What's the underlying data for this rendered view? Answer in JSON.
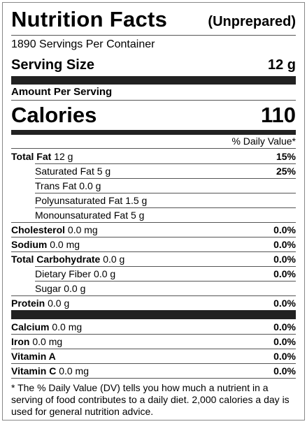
{
  "header": {
    "title": "Nutrition Facts",
    "subtitle": "(Unprepared)"
  },
  "servings_per_container": "1890 Servings Per Container",
  "serving_size": {
    "label": "Serving Size",
    "value": "12 g"
  },
  "amount_per_serving": "Amount Per Serving",
  "calories": {
    "label": "Calories",
    "value": "110"
  },
  "daily_value_header": "% Daily Value*",
  "nutrients": [
    {
      "name": "Total Fat",
      "amount": "12 g",
      "dv": "15%",
      "sub": [
        {
          "name": "Saturated Fat",
          "amount": "5 g",
          "dv": "25%"
        },
        {
          "name": "Trans Fat",
          "amount": "0.0 g"
        },
        {
          "name": "Polyunsaturated Fat",
          "amount": "1.5 g"
        },
        {
          "name": "Monounsaturated Fat",
          "amount": "5 g"
        }
      ]
    },
    {
      "name": "Cholesterol",
      "amount": "0.0 mg",
      "dv": "0.0%"
    },
    {
      "name": "Sodium",
      "amount": "0.0 mg",
      "dv": "0.0%"
    },
    {
      "name": "Total Carbohydrate",
      "amount": "0.0 g",
      "dv": "0.0%",
      "sub": [
        {
          "name": "Dietary Fiber",
          "amount": "0.0 g",
          "dv": "0.0%"
        },
        {
          "name": "Sugar",
          "amount": "0.0 g"
        }
      ]
    },
    {
      "name": "Protein",
      "amount": "0.0 g",
      "dv": "0.0%"
    }
  ],
  "vitamins_minerals": [
    {
      "name": "Calcium",
      "amount": "0.0 mg",
      "dv": "0.0%"
    },
    {
      "name": "Iron",
      "amount": "0.0 mg",
      "dv": "0.0%"
    },
    {
      "name": "Vitamin A",
      "dv": "0.0%"
    },
    {
      "name": "Vitamin C",
      "amount": "0.0 mg",
      "dv": "0.0%"
    }
  ],
  "footnote": "* The % Daily Value (DV) tells you how much a nutrient in a serving of food contributes to a daily diet. 2,000 calories a day is used for general nutrition advice."
}
